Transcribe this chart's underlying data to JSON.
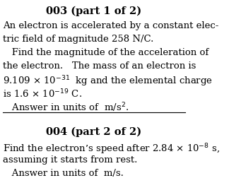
{
  "bg_color": "#ffffff",
  "title1": "003 (part 1 of 2)",
  "line1a": "An electron is accelerated by a constant elec-",
  "line1b": "tric field of magnitude 258 N/C.",
  "line1c": "   Find the magnitude of the acceleration of",
  "line1d": "the electron.   The mass of an electron is",
  "line1e": "9.109 $\\times$ 10$^{-31}$  kg and the elemental charge",
  "line1f": "is 1.6 $\\times$ 10$^{-19}$ C.",
  "line1g": "   Answer in units of  m/s$^{2}$.",
  "title2": "004 (part 2 of 2)",
  "line2a": "Find the electron’s speed after 2.84 $\\times$ 10$^{-8}$ s,",
  "line2b": "assuming it starts from rest.",
  "line2c": "   Answer in units of  m/s.",
  "body_fontsize": 9.5,
  "title_fontsize": 10.5
}
